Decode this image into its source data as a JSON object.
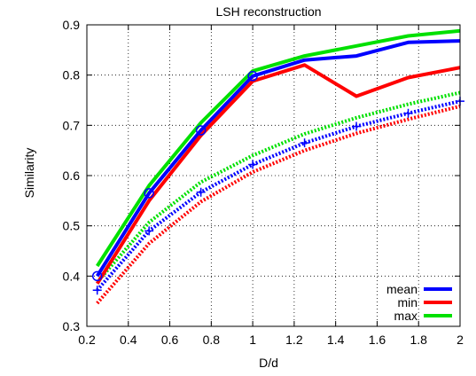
{
  "chart_data": {
    "type": "line",
    "title": "LSH reconstruction",
    "xlabel": "D/d",
    "ylabel": "Similarity",
    "xlim": [
      0.2,
      2.0
    ],
    "ylim": [
      0.3,
      0.9
    ],
    "x_ticks": [
      "0.2",
      "0.4",
      "0.6",
      "0.8",
      "1",
      "1.2",
      "1.4",
      "1.6",
      "1.8",
      "2"
    ],
    "y_ticks": [
      "0.3",
      "0.4",
      "0.5",
      "0.6",
      "0.7",
      "0.8",
      "0.9"
    ],
    "grid": true,
    "legend_position": "bottom-right",
    "series": [
      {
        "name": "mean",
        "color": "#0000ff",
        "style": "solid",
        "x": [
          0.25,
          0.5,
          0.75,
          1.0,
          1.25,
          1.5,
          1.75,
          2.0
        ],
        "y": [
          0.4,
          0.565,
          0.69,
          0.798,
          0.83,
          0.838,
          0.865,
          0.868
        ]
      },
      {
        "name": "min",
        "color": "#ff0000",
        "style": "solid",
        "x": [
          0.25,
          0.5,
          0.75,
          1.0,
          1.25,
          1.5,
          1.75,
          2.0
        ],
        "y": [
          0.385,
          0.55,
          0.68,
          0.788,
          0.82,
          0.758,
          0.795,
          0.815
        ]
      },
      {
        "name": "max",
        "color": "#00e000",
        "style": "solid",
        "x": [
          0.25,
          0.5,
          0.75,
          1.0,
          1.25,
          1.5,
          1.75,
          2.0
        ],
        "y": [
          0.42,
          0.58,
          0.705,
          0.808,
          0.838,
          0.858,
          0.878,
          0.888
        ]
      },
      {
        "color": "#0000ff",
        "style": "dotted",
        "x": [
          0.25,
          0.5,
          0.75,
          1.0,
          1.25,
          1.5,
          1.75,
          2.0
        ],
        "y": [
          0.372,
          0.49,
          0.567,
          0.622,
          0.665,
          0.698,
          0.724,
          0.748
        ]
      },
      {
        "color": "#ff0000",
        "style": "dotted",
        "x": [
          0.25,
          0.5,
          0.75,
          1.0,
          1.25,
          1.5,
          1.75,
          2.0
        ],
        "y": [
          0.346,
          0.465,
          0.548,
          0.607,
          0.65,
          0.684,
          0.712,
          0.738
        ]
      },
      {
        "color": "#00e000",
        "style": "dotted",
        "x": [
          0.25,
          0.5,
          0.75,
          1.0,
          1.25,
          1.5,
          1.75,
          2.0
        ],
        "y": [
          0.388,
          0.507,
          0.587,
          0.64,
          0.683,
          0.715,
          0.742,
          0.765
        ]
      }
    ],
    "markers": [
      {
        "symbol": "circle",
        "color": "#0000ff",
        "x": [
          0.25,
          0.5,
          0.75,
          1.0
        ],
        "y": [
          0.4,
          0.565,
          0.69,
          0.798
        ]
      },
      {
        "symbol": "plus",
        "color": "#0000ff",
        "x": [
          0.25,
          0.5,
          0.75,
          1.0,
          1.25,
          1.5,
          1.75,
          2.0
        ],
        "y": [
          0.372,
          0.49,
          0.567,
          0.622,
          0.665,
          0.698,
          0.724,
          0.748
        ]
      }
    ]
  }
}
